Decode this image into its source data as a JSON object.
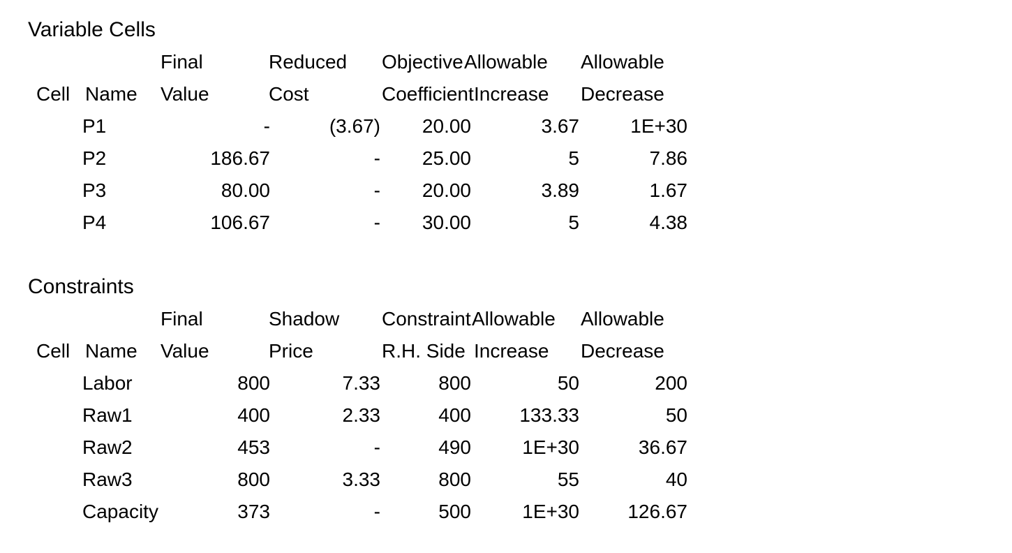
{
  "page": {
    "background_color": "#ffffff",
    "text_color": "#000000"
  },
  "variable_cells": {
    "title": "Variable Cells",
    "header_row1": {
      "final": "Final",
      "reduced": "Reduced",
      "objective": "Objective",
      "allowable_inc": "Allowable",
      "allowable_dec": "Allowable"
    },
    "header_row2": {
      "cell": "Cell",
      "name": "Name",
      "value": "Value",
      "cost": "Cost",
      "coefficient": "Coefficient",
      "increase": "Increase",
      "decrease": "Decrease"
    },
    "rows": [
      {
        "cell": "",
        "name": "P1",
        "final_value": "-",
        "reduced_cost": "(3.67)",
        "objective_coefficient": "20.00",
        "allowable_increase": "3.67",
        "allowable_decrease": "1E+30"
      },
      {
        "cell": "",
        "name": "P2",
        "final_value": "186.67",
        "reduced_cost": "-",
        "objective_coefficient": "25.00",
        "allowable_increase": "5",
        "allowable_decrease": "7.86"
      },
      {
        "cell": "",
        "name": "P3",
        "final_value": "80.00",
        "reduced_cost": "-",
        "objective_coefficient": "20.00",
        "allowable_increase": "3.89",
        "allowable_decrease": "1.67"
      },
      {
        "cell": "",
        "name": "P4",
        "final_value": "106.67",
        "reduced_cost": "-",
        "objective_coefficient": "30.00",
        "allowable_increase": "5",
        "allowable_decrease": "4.38"
      }
    ]
  },
  "constraints": {
    "title": "Constraints",
    "header_row1": {
      "final": "Final",
      "shadow": "Shadow",
      "constraint": "Constraint",
      "allowable_inc": "Allowable",
      "allowable_dec": "Allowable"
    },
    "header_row2": {
      "cell": "Cell",
      "name": "Name",
      "value": "Value",
      "price": "Price",
      "rhs": "R.H. Side",
      "increase": "Increase",
      "decrease": "Decrease"
    },
    "rows": [
      {
        "cell": "",
        "name": "Labor",
        "final_value": "800",
        "shadow_price": "7.33",
        "rhs": "800",
        "allowable_increase": "50",
        "allowable_decrease": "200"
      },
      {
        "cell": "",
        "name": "Raw1",
        "final_value": "400",
        "shadow_price": "2.33",
        "rhs": "400",
        "allowable_increase": "133.33",
        "allowable_decrease": "50"
      },
      {
        "cell": "",
        "name": "Raw2",
        "final_value": "453",
        "shadow_price": "-",
        "rhs": "490",
        "allowable_increase": "1E+30",
        "allowable_decrease": "36.67"
      },
      {
        "cell": "",
        "name": "Raw3",
        "final_value": "800",
        "shadow_price": "3.33",
        "rhs": "800",
        "allowable_increase": "55",
        "allowable_decrease": "40"
      },
      {
        "cell": "",
        "name": "Capacity",
        "final_value": "373",
        "shadow_price": "-",
        "rhs": "500",
        "allowable_increase": "1E+30",
        "allowable_decrease": "126.67"
      }
    ]
  }
}
